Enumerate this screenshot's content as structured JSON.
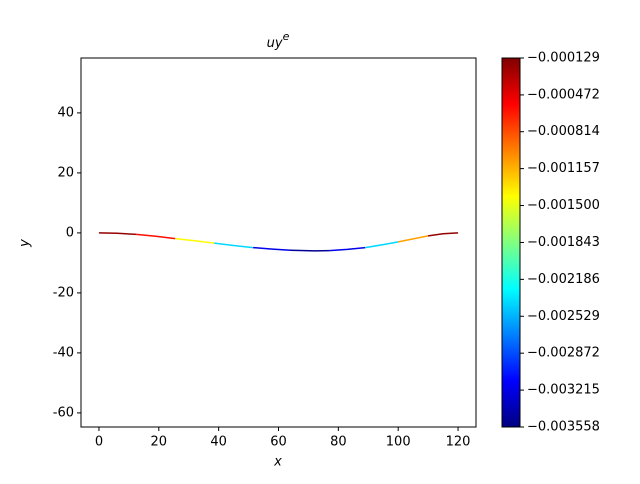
{
  "chart_data": {
    "type": "colored-line",
    "title": "uy",
    "title_superscript": "e",
    "xlabel": "x",
    "ylabel": "y",
    "xlim": [
      -6,
      126
    ],
    "xticks": [
      0,
      20,
      40,
      60,
      80,
      100,
      120
    ],
    "ylim": [
      -64.7,
      58.3
    ],
    "yticks": [
      -60,
      -40,
      -20,
      0,
      20,
      40
    ],
    "colormap": "jet",
    "clim": [
      -0.003558,
      -0.000129
    ],
    "cticks": [
      {
        "value": -0.000129,
        "label": "−0.000129"
      },
      {
        "value": -0.000472,
        "label": "−0.000472"
      },
      {
        "value": -0.000814,
        "label": "−0.000814"
      },
      {
        "value": -0.001157,
        "label": "−0.001157"
      },
      {
        "value": -0.0015,
        "label": "−0.001500"
      },
      {
        "value": -0.001843,
        "label": "−0.001843"
      },
      {
        "value": -0.002186,
        "label": "−0.002186"
      },
      {
        "value": -0.002529,
        "label": "−0.002529"
      },
      {
        "value": -0.002872,
        "label": "−0.002872"
      },
      {
        "value": -0.003215,
        "label": "−0.003215"
      },
      {
        "value": -0.003558,
        "label": "−0.003558"
      }
    ],
    "segments": [
      {
        "x": [
          0,
          6,
          12.5
        ],
        "y": [
          0,
          -0.1,
          -0.5
        ],
        "value": -0.0002
      },
      {
        "x": [
          12.5,
          19,
          25.5
        ],
        "y": [
          -0.5,
          -1.1,
          -1.9
        ],
        "value": -0.0006
      },
      {
        "x": [
          25.5,
          32,
          38.5
        ],
        "y": [
          -1.9,
          -2.6,
          -3.4
        ],
        "value": -0.0014
      },
      {
        "x": [
          38.5,
          45,
          51.5
        ],
        "y": [
          -3.4,
          -4.2,
          -4.9
        ],
        "value": -0.0024
      },
      {
        "x": [
          51.5,
          58,
          64
        ],
        "y": [
          -4.9,
          -5.4,
          -5.8
        ],
        "value": -0.0032
      },
      {
        "x": [
          64,
          72,
          77
        ],
        "y": [
          -5.8,
          -6,
          -5.9
        ],
        "value": -0.0035
      },
      {
        "x": [
          77,
          83,
          89
        ],
        "y": [
          -5.9,
          -5.5,
          -4.9
        ],
        "value": -0.0032
      },
      {
        "x": [
          89,
          95,
          100
        ],
        "y": [
          -4.9,
          -3.9,
          -3
        ],
        "value": -0.0024
      },
      {
        "x": [
          100,
          105,
          110
        ],
        "y": [
          -3,
          -2,
          -1
        ],
        "value": -0.0011
      },
      {
        "x": [
          110,
          115,
          120
        ],
        "y": [
          -1,
          -0.3,
          0
        ],
        "value": -0.0002
      }
    ]
  }
}
